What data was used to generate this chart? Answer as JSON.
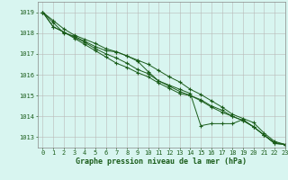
{
  "title": "Graphe pression niveau de la mer (hPa)",
  "bg_color": "#d8f5f0",
  "grid_color": "#b8b8b8",
  "line_color": "#1a5c1a",
  "spine_color": "#888888",
  "xlim": [
    -0.5,
    23
  ],
  "ylim": [
    1012.5,
    1019.5
  ],
  "yticks": [
    1013,
    1014,
    1015,
    1016,
    1017,
    1018,
    1019
  ],
  "xticks": [
    0,
    1,
    2,
    3,
    4,
    5,
    6,
    7,
    8,
    9,
    10,
    11,
    12,
    13,
    14,
    15,
    16,
    17,
    18,
    19,
    20,
    21,
    22,
    23
  ],
  "series": [
    [
      1019.0,
      1018.5,
      1018.0,
      1017.85,
      1017.6,
      1017.35,
      1017.15,
      1017.1,
      1016.9,
      1016.65,
      1016.15,
      1015.7,
      1015.5,
      1015.3,
      1015.1,
      1013.55,
      1013.65,
      1013.65,
      1013.65,
      1013.85,
      1013.5,
      1013.1,
      1012.7,
      1012.65
    ],
    [
      1019.0,
      1018.3,
      1018.05,
      1017.8,
      1017.55,
      1017.25,
      1017.0,
      1016.8,
      1016.55,
      1016.25,
      1016.05,
      1015.7,
      1015.45,
      1015.2,
      1015.0,
      1014.75,
      1014.45,
      1014.2,
      1014.0,
      1013.8,
      1013.5,
      1013.1,
      1012.75,
      1012.65
    ],
    [
      1019.0,
      1018.3,
      1018.05,
      1017.75,
      1017.45,
      1017.15,
      1016.85,
      1016.55,
      1016.35,
      1016.1,
      1015.9,
      1015.6,
      1015.35,
      1015.1,
      1015.0,
      1014.8,
      1014.5,
      1014.3,
      1014.0,
      1013.8,
      1013.5,
      1013.1,
      1012.7,
      1012.65
    ],
    [
      1019.0,
      1018.6,
      1018.2,
      1017.9,
      1017.7,
      1017.5,
      1017.25,
      1017.1,
      1016.9,
      1016.7,
      1016.5,
      1016.2,
      1015.9,
      1015.65,
      1015.3,
      1015.05,
      1014.75,
      1014.45,
      1014.1,
      1013.9,
      1013.7,
      1013.2,
      1012.8,
      1012.65
    ]
  ],
  "title_fontsize": 6,
  "tick_fontsize": 5,
  "tick_color": "#1a5c1a"
}
